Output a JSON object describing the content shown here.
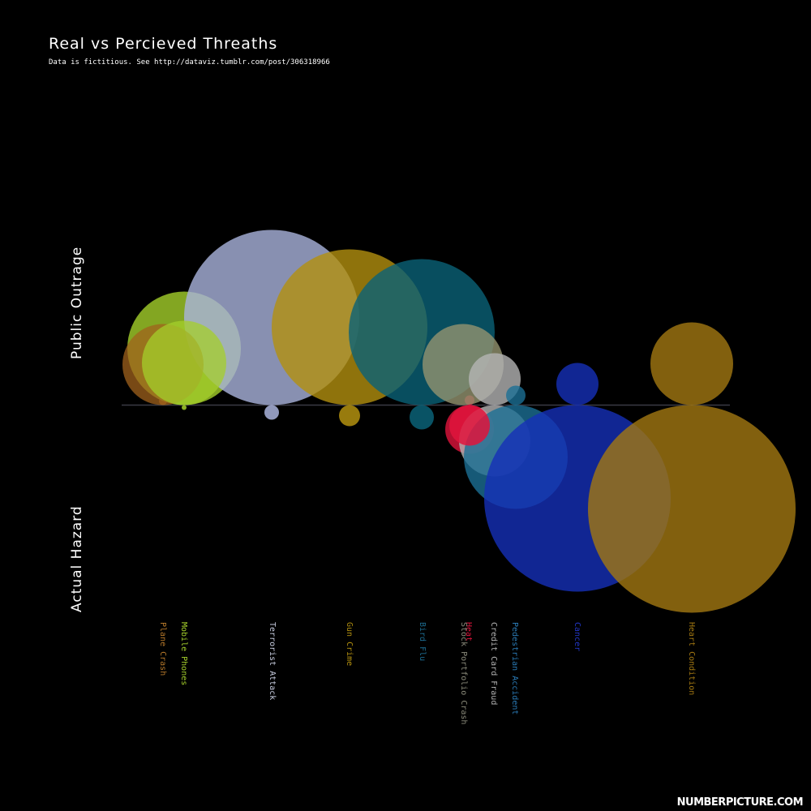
{
  "chart_data": {
    "type": "scatter",
    "title": "Real vs Percieved Threaths",
    "subtitle": "Data is fictitious. See http://dataviz.tumblr.com/post/306318966",
    "upper_axis_label": "Public Outrage",
    "lower_axis_label": "Actual Hazard",
    "series": [
      {
        "name": "Plane Crash",
        "color": "#a0621c",
        "outrage_small": 50,
        "outrage_big": 5,
        "hazard_small": 0,
        "hazard_big": 0
      },
      {
        "name": "Mobile Phones",
        "color": "#a4cf2b",
        "outrage_small": 52,
        "outrage_big": 70,
        "hazard_small": 3,
        "hazard_big": 0
      },
      {
        "name": "Terrorist Attack",
        "color": "#aab4dd",
        "outrage_small": 0,
        "outrage_big": 108,
        "hazard_small": 9,
        "hazard_big": 0
      },
      {
        "name": "Gun Crime",
        "color": "#b3900f",
        "outrage_small": 0,
        "outrage_big": 96,
        "hazard_small": 13,
        "hazard_big": 0
      },
      {
        "name": "Bird Flu",
        "color": "#0a6177",
        "outrage_small": 0,
        "outrage_big": 90,
        "hazard_small": 15,
        "hazard_big": 0
      },
      {
        "name": "Heat",
        "color": "#e0143c",
        "outrage_small": 0,
        "outrage_big": 6,
        "hazard_small": 25,
        "hazard_big": 30
      },
      {
        "name": "Stock Portfolio Crash",
        "color": "#94936f",
        "outrage_small": 0,
        "outrage_big": 50,
        "hazard_small": 0,
        "hazard_big": 0
      },
      {
        "name": "Credit Card Fraud",
        "color": "#b4b4b4",
        "outrage_small": 0,
        "outrage_big": 32,
        "hazard_small": 0,
        "hazard_big": 44
      },
      {
        "name": "Pedestrian Accident",
        "color": "#1b6f95",
        "outrage_small": 0,
        "outrage_big": 12,
        "hazard_small": 0,
        "hazard_big": 64
      },
      {
        "name": "Cancer",
        "color": "#1530b8",
        "outrage_small": 0,
        "outrage_big": 26,
        "hazard_small": 0,
        "hazard_big": 115
      },
      {
        "name": "Heart Condition",
        "color": "#a37812",
        "outrage_small": 0,
        "outrage_big": 51,
        "hazard_small": 0,
        "hazard_big": 128
      }
    ]
  },
  "label_colors": {
    "Plane Crash": "#b5782a",
    "Mobile Phones": "#a4cf2b",
    "Terrorist Attack": "#c8cde0",
    "Gun Crime": "#b3900f",
    "Bird Flu": "#1d6d92",
    "Heat": "#e0143c",
    "Stock Portfolio Crash": "#8a8a7a",
    "Credit Card Fraud": "#b4b4b4",
    "Pedestrian Accident": "#2a7ab5",
    "Cancer": "#2237c8",
    "Heart Condition": "#a37812"
  },
  "brand": "NUMBERPICTURE.COM"
}
